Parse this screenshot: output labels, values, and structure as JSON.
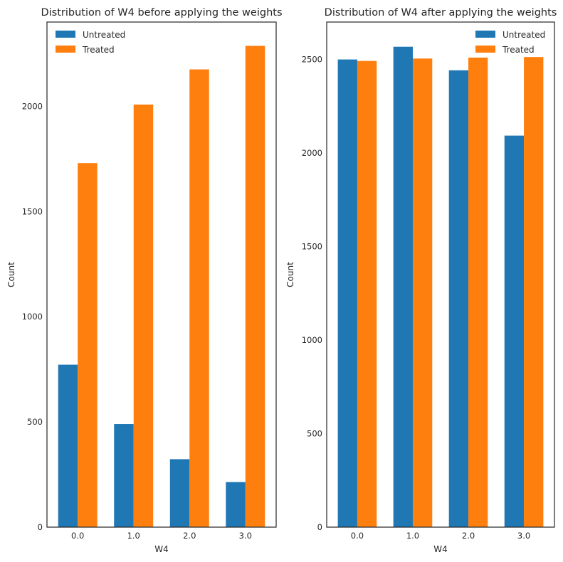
{
  "chart_data": [
    {
      "type": "bar",
      "title": "Distribution of W4 before applying the weights",
      "xlabel": "W4",
      "ylabel": "Count",
      "categories": [
        "0.0",
        "1.0",
        "2.0",
        "3.0"
      ],
      "series": [
        {
          "name": "Untreated",
          "color": "#1f77b4",
          "values": [
            772,
            490,
            323,
            214
          ]
        },
        {
          "name": "Treated",
          "color": "#ff7f0e",
          "values": [
            1730,
            2008,
            2175,
            2287
          ]
        }
      ],
      "ylim": [
        0,
        2400
      ],
      "yticks": [
        0,
        500,
        1000,
        1500,
        2000
      ],
      "legend": "top-left",
      "grid": false
    },
    {
      "type": "bar",
      "title": "Distribution of W4 after applying the weights",
      "xlabel": "W4",
      "ylabel": "Count",
      "categories": [
        "0.0",
        "1.0",
        "2.0",
        "3.0"
      ],
      "series": [
        {
          "name": "Untreated",
          "color": "#1f77b4",
          "values": [
            2500,
            2568,
            2442,
            2093
          ]
        },
        {
          "name": "Treated",
          "color": "#ff7f0e",
          "values": [
            2492,
            2505,
            2510,
            2513
          ]
        }
      ],
      "ylim": [
        0,
        2700
      ],
      "yticks": [
        0,
        500,
        1000,
        1500,
        2000,
        2500
      ],
      "legend": "top-right",
      "grid": false
    }
  ]
}
